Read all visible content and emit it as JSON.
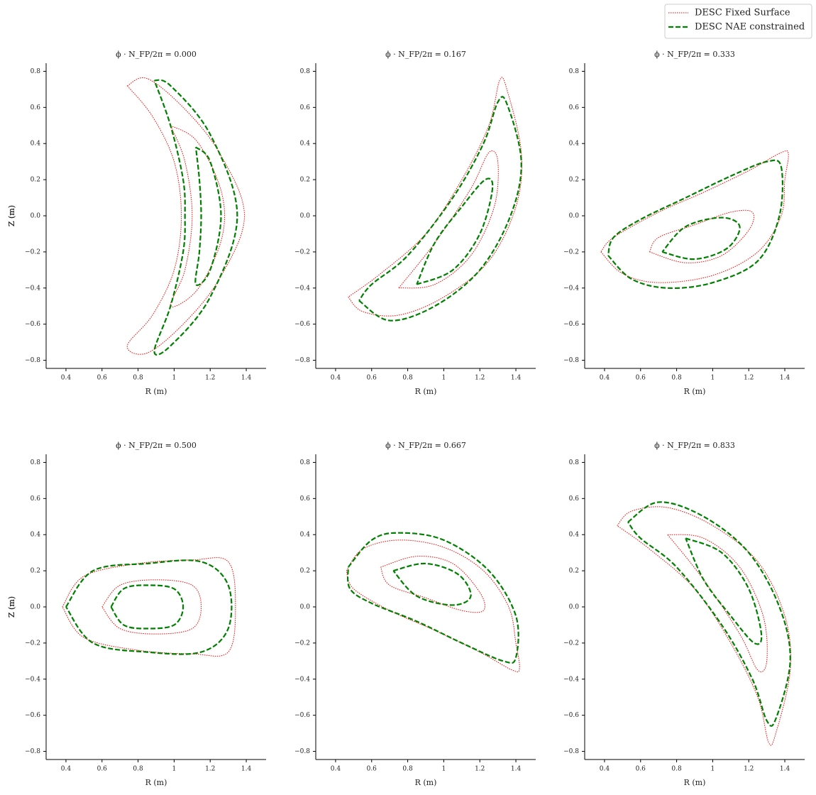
{
  "chart_data": [
    {
      "type": "line",
      "title": "ϕ · N_FP/2π = 0.000",
      "xlabel": "R (m)",
      "ylabel": "Z (m)",
      "legend": "upper right",
      "xlim": [
        0.29,
        1.51
      ],
      "ylim": [
        -0.845,
        0.845
      ],
      "xticks": [
        0.4,
        0.6,
        0.8,
        1.0,
        1.2,
        1.4
      ],
      "yticks": [
        {
          "value": -0.8,
          "label": "−0.8"
        },
        {
          "value": -0.6,
          "label": "−0.6"
        },
        {
          "value": -0.4,
          "label": "−0.4"
        },
        {
          "value": -0.2,
          "label": "−0.2"
        },
        {
          "value": 0,
          "label": "0.0"
        },
        0.2,
        0.4,
        0.6,
        0.8
      ],
      "series": [
        {
          "name": "DESC Fixed Surface",
          "color": "#ff0000",
          "linestyle": "dotted",
          "x": [
            0.74,
            0.85,
            1.05,
            1.25,
            1.39,
            1.25,
            1.05,
            0.85,
            0.74,
            0.88,
            1.0,
            1.04,
            1.0,
            0.88,
            0.74,
            null,
            0.98,
            1.12,
            1.24,
            1.28,
            1.24,
            1.12,
            0.98,
            1.06,
            1.1,
            1.06,
            0.98
          ],
          "values": [
            0.72,
            0.76,
            0.6,
            0.35,
            0,
            -0.35,
            -0.6,
            -0.76,
            -0.72,
            -0.55,
            -0.3,
            0,
            0.3,
            0.55,
            0.72,
            null,
            0.5,
            0.42,
            0.2,
            0,
            -0.2,
            -0.42,
            -0.5,
            -0.3,
            0,
            0.3,
            0.5
          ]
        },
        {
          "name": "DESC NAE constrained",
          "color": "#008000",
          "linestyle": "dashed",
          "x": [
            0.89,
            0.98,
            1.2,
            1.35,
            1.2,
            0.98,
            0.89,
            0.98,
            1.05,
            1.06,
            1.05,
            0.98,
            0.89,
            null,
            1.12,
            1.2,
            1.26,
            1.2,
            1.12,
            1.14,
            1.15,
            1.14,
            1.12
          ],
          "values": [
            0.75,
            0.72,
            0.45,
            0,
            -0.45,
            -0.72,
            -0.75,
            -0.5,
            -0.2,
            0,
            0.2,
            0.5,
            0.75,
            null,
            0.38,
            0.3,
            0,
            -0.3,
            -0.38,
            -0.2,
            0,
            0.2,
            0.38
          ]
        }
      ]
    },
    {
      "type": "line",
      "title": "ϕ · N_FP/2π = 0.167",
      "xlabel": "R (m)",
      "ylabel": "Z (m)",
      "xlim": [
        0.29,
        1.51
      ],
      "ylim": [
        -0.845,
        0.845
      ],
      "xticks": [
        0.4,
        0.6,
        0.8,
        1.0,
        1.2,
        1.4
      ],
      "yticks": [
        {
          "value": -0.8,
          "label": "−0.8"
        },
        {
          "value": -0.6,
          "label": "−0.6"
        },
        {
          "value": -0.4,
          "label": "−0.4"
        },
        {
          "value": -0.2,
          "label": "−0.2"
        },
        {
          "value": 0,
          "label": "0.0"
        },
        0.2,
        0.4,
        0.6,
        0.8
      ],
      "series": [
        {
          "color": "#ff0000",
          "linestyle": "dotted",
          "x": [
            0.47,
            0.55,
            0.75,
            1.0,
            1.25,
            1.4,
            1.43,
            1.35,
            1.31,
            1.25,
            1.1,
            0.9,
            0.65,
            0.47,
            null,
            0.75,
            0.95,
            1.15,
            1.28,
            1.3,
            1.25,
            1.15,
            0.95,
            0.75
          ],
          "values": [
            -0.45,
            -0.53,
            -0.55,
            -0.45,
            -0.25,
            0.05,
            0.35,
            0.7,
            0.75,
            0.5,
            0.2,
            -0.1,
            -0.32,
            -0.45,
            null,
            -0.4,
            -0.38,
            -0.22,
            0.05,
            0.3,
            0.35,
            0.15,
            -0.15,
            -0.4
          ]
        },
        {
          "color": "#008000",
          "linestyle": "dashed",
          "x": [
            0.53,
            0.7,
            0.95,
            1.2,
            1.37,
            1.43,
            1.35,
            1.3,
            1.22,
            1.05,
            0.8,
            0.6,
            0.53,
            null,
            0.85,
            1.05,
            1.2,
            1.27,
            1.23,
            1.1,
            0.95,
            0.85
          ],
          "values": [
            -0.47,
            -0.58,
            -0.5,
            -0.3,
            0.0,
            0.3,
            0.62,
            0.63,
            0.4,
            0.1,
            -0.22,
            -0.38,
            -0.47,
            null,
            -0.38,
            -0.3,
            -0.1,
            0.15,
            0.2,
            0.05,
            -0.15,
            -0.38
          ]
        }
      ]
    },
    {
      "type": "line",
      "title": "ϕ · N_FP/2π = 0.333",
      "xlabel": "R (m)",
      "ylabel": "Z (m)",
      "xlim": [
        0.29,
        1.51
      ],
      "ylim": [
        -0.845,
        0.845
      ],
      "xticks": [
        0.4,
        0.6,
        0.8,
        1.0,
        1.2,
        1.4
      ],
      "yticks": [
        {
          "value": -0.8,
          "label": "−0.8"
        },
        {
          "value": -0.6,
          "label": "−0.6"
        },
        {
          "value": -0.4,
          "label": "−0.4"
        },
        {
          "value": -0.2,
          "label": "−0.2"
        },
        {
          "value": 0,
          "label": "0.0"
        },
        0.2,
        0.4,
        0.6,
        0.8
      ],
      "series": [
        {
          "color": "#ff0000",
          "linestyle": "dotted",
          "x": [
            0.38,
            0.5,
            0.7,
            1.0,
            1.25,
            1.38,
            1.4,
            1.42,
            1.38,
            1.2,
            0.95,
            0.7,
            0.45,
            0.38,
            null,
            0.65,
            0.85,
            1.05,
            1.2,
            1.22,
            1.1,
            0.9,
            0.7,
            0.65
          ],
          "values": [
            -0.2,
            -0.32,
            -0.37,
            -0.33,
            -0.2,
            0.0,
            0.2,
            0.34,
            0.35,
            0.25,
            0.13,
            0.02,
            -0.12,
            -0.2,
            null,
            -0.2,
            -0.26,
            -0.22,
            -0.08,
            0.02,
            0.02,
            -0.05,
            -0.12,
            -0.2
          ]
        },
        {
          "color": "#008000",
          "linestyle": "dashed",
          "x": [
            0.42,
            0.55,
            0.75,
            1.0,
            1.25,
            1.37,
            1.38,
            1.3,
            1.1,
            0.85,
            0.6,
            0.45,
            0.42,
            null,
            0.72,
            0.9,
            1.08,
            1.15,
            1.05,
            0.85,
            0.72
          ],
          "values": [
            -0.22,
            -0.35,
            -0.4,
            -0.37,
            -0.25,
            0.0,
            0.27,
            0.3,
            0.22,
            0.1,
            -0.02,
            -0.12,
            -0.22,
            null,
            -0.2,
            -0.24,
            -0.18,
            -0.06,
            -0.01,
            -0.06,
            -0.2
          ]
        }
      ]
    },
    {
      "type": "line",
      "title": "ϕ · N_FP/2π = 0.500",
      "xlabel": "R (m)",
      "ylabel": "Z (m)",
      "xlim": [
        0.29,
        1.51
      ],
      "ylim": [
        -0.845,
        0.845
      ],
      "xticks": [
        0.4,
        0.6,
        0.8,
        1.0,
        1.2,
        1.4
      ],
      "yticks": [
        {
          "value": -0.8,
          "label": "−0.8"
        },
        {
          "value": -0.6,
          "label": "−0.6"
        },
        {
          "value": -0.4,
          "label": "−0.4"
        },
        {
          "value": -0.2,
          "label": "−0.2"
        },
        {
          "value": 0,
          "label": "0.0"
        },
        0.2,
        0.4,
        0.6,
        0.8
      ],
      "series": [
        {
          "color": "#ff0000",
          "linestyle": "dotted",
          "x": [
            0.38,
            0.5,
            0.8,
            1.1,
            1.3,
            1.34,
            1.3,
            1.1,
            0.8,
            0.5,
            0.38,
            null,
            0.6,
            0.7,
            0.9,
            1.1,
            1.15,
            1.1,
            0.9,
            0.7,
            0.6
          ],
          "values": [
            0.0,
            0.17,
            0.24,
            0.26,
            0.25,
            0.0,
            -0.25,
            -0.26,
            -0.24,
            -0.17,
            0.0,
            null,
            0,
            0.12,
            0.15,
            0.12,
            0,
            -0.12,
            -0.15,
            -0.12,
            0
          ]
        },
        {
          "color": "#008000",
          "linestyle": "dashed",
          "x": [
            0.4,
            0.55,
            0.85,
            1.15,
            1.3,
            1.3,
            1.15,
            0.85,
            0.55,
            0.4,
            null,
            0.65,
            0.72,
            0.85,
            1.0,
            1.05,
            1.0,
            0.85,
            0.72,
            0.65
          ],
          "values": [
            0.0,
            0.2,
            0.24,
            0.25,
            0.12,
            -0.12,
            -0.25,
            -0.25,
            -0.2,
            0.0,
            null,
            0,
            0.1,
            0.12,
            0.1,
            0,
            -0.1,
            -0.12,
            -0.1,
            0
          ]
        }
      ]
    },
    {
      "type": "line",
      "title": "ϕ · N_FP/2π = 0.667",
      "xlabel": "R (m)",
      "ylabel": "Z (m)",
      "xlim": [
        0.29,
        1.51
      ],
      "ylim": [
        -0.845,
        0.845
      ],
      "xticks": [
        0.4,
        0.6,
        0.8,
        1.0,
        1.2,
        1.4
      ],
      "yticks": [
        {
          "value": -0.8,
          "label": "−0.8"
        },
        {
          "value": -0.6,
          "label": "−0.6"
        },
        {
          "value": -0.4,
          "label": "−0.4"
        },
        {
          "value": -0.2,
          "label": "−0.2"
        },
        {
          "value": 0,
          "label": "0.0"
        },
        0.2,
        0.4,
        0.6,
        0.8
      ],
      "series": [
        {
          "color": "#ff0000",
          "linestyle": "dotted",
          "x": [
            0.46,
            0.55,
            0.75,
            1.0,
            1.22,
            1.36,
            1.4,
            1.42,
            1.38,
            1.2,
            0.95,
            0.7,
            0.5,
            0.46,
            null,
            0.65,
            0.85,
            1.05,
            1.2,
            1.22,
            1.1,
            0.9,
            0.7,
            0.65
          ],
          "values": [
            0.2,
            0.32,
            0.37,
            0.33,
            0.2,
            0.0,
            -0.2,
            -0.34,
            -0.35,
            -0.25,
            -0.13,
            -0.02,
            0.1,
            0.2,
            null,
            0.22,
            0.28,
            0.24,
            0.08,
            -0.02,
            -0.02,
            0.05,
            0.12,
            0.22
          ]
        },
        {
          "color": "#008000",
          "linestyle": "dashed",
          "x": [
            0.47,
            0.6,
            0.75,
            1.0,
            1.25,
            1.4,
            1.4,
            1.33,
            1.1,
            0.85,
            0.6,
            0.48,
            0.47,
            null,
            0.72,
            0.9,
            1.08,
            1.15,
            1.05,
            0.85,
            0.72
          ],
          "values": [
            0.22,
            0.37,
            0.41,
            0.37,
            0.2,
            -0.05,
            -0.28,
            -0.3,
            -0.2,
            -0.08,
            0.02,
            0.1,
            0.22,
            null,
            0.2,
            0.24,
            0.18,
            0.06,
            0.01,
            0.06,
            0.2
          ]
        }
      ]
    },
    {
      "type": "line",
      "title": "ϕ · N_FP/2π = 0.833",
      "xlabel": "R (m)",
      "ylabel": "Z (m)",
      "xlim": [
        0.29,
        1.51
      ],
      "ylim": [
        -0.845,
        0.845
      ],
      "xticks": [
        0.4,
        0.6,
        0.8,
        1.0,
        1.2,
        1.4
      ],
      "yticks": [
        {
          "value": -0.8,
          "label": "−0.8"
        },
        {
          "value": -0.6,
          "label": "−0.6"
        },
        {
          "value": -0.4,
          "label": "−0.4"
        },
        {
          "value": -0.2,
          "label": "−0.2"
        },
        {
          "value": 0,
          "label": "0.0"
        },
        0.2,
        0.4,
        0.6,
        0.8
      ],
      "series": [
        {
          "color": "#ff0000",
          "linestyle": "dotted",
          "x": [
            0.47,
            0.55,
            0.75,
            1.0,
            1.25,
            1.4,
            1.43,
            1.35,
            1.31,
            1.25,
            1.1,
            0.9,
            0.65,
            0.47,
            null,
            0.75,
            0.95,
            1.15,
            1.28,
            1.3,
            1.25,
            1.15,
            0.95,
            0.75
          ],
          "values": [
            0.45,
            0.53,
            0.55,
            0.45,
            0.25,
            -0.05,
            -0.35,
            -0.7,
            -0.75,
            -0.5,
            -0.2,
            0.1,
            0.32,
            0.45,
            null,
            0.4,
            0.38,
            0.22,
            -0.05,
            -0.3,
            -0.35,
            -0.15,
            0.15,
            0.4
          ]
        },
        {
          "color": "#008000",
          "linestyle": "dashed",
          "x": [
            0.53,
            0.7,
            0.95,
            1.2,
            1.37,
            1.43,
            1.35,
            1.3,
            1.22,
            1.05,
            0.8,
            0.6,
            0.53,
            null,
            0.85,
            1.05,
            1.2,
            1.27,
            1.23,
            1.1,
            0.95,
            0.85
          ],
          "values": [
            0.47,
            0.58,
            0.5,
            0.3,
            0.0,
            -0.3,
            -0.62,
            -0.63,
            -0.4,
            -0.1,
            0.22,
            0.38,
            0.47,
            null,
            0.38,
            0.3,
            0.1,
            -0.15,
            -0.2,
            -0.05,
            0.15,
            0.38
          ]
        }
      ]
    }
  ]
}
